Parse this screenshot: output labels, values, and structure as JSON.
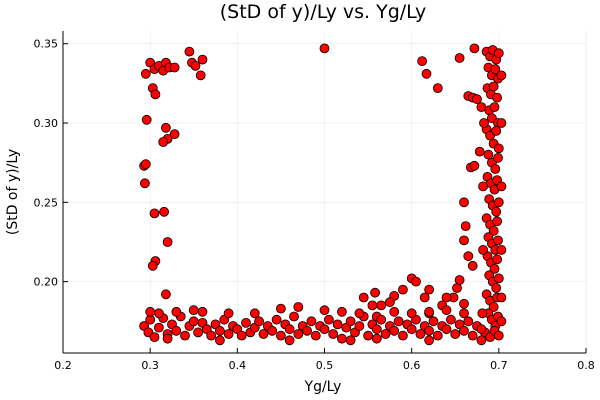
{
  "chart_data": {
    "type": "scatter",
    "title": "(StD of y)/Ly vs. Yg/Ly",
    "xlabel": "Yg/Ly",
    "ylabel": "(StD of y)/Ly",
    "xlim": [
      0.2,
      0.8
    ],
    "ylim": [
      0.155,
      0.358
    ],
    "xticks": [
      "0.2",
      "0.3",
      "0.4",
      "0.5",
      "0.6",
      "0.7",
      "0.8"
    ],
    "yticks": [
      "0.20",
      "0.25",
      "0.30",
      "0.35"
    ],
    "grid": true,
    "legend": "none",
    "marker_color": "#ff0000",
    "series": [
      {
        "points": [
          [
            0.295,
            0.331
          ],
          [
            0.3,
            0.338
          ],
          [
            0.305,
            0.334
          ],
          [
            0.31,
            0.336
          ],
          [
            0.315,
            0.333
          ],
          [
            0.318,
            0.338
          ],
          [
            0.322,
            0.335
          ],
          [
            0.328,
            0.335
          ],
          [
            0.345,
            0.345
          ],
          [
            0.348,
            0.338
          ],
          [
            0.352,
            0.336
          ],
          [
            0.358,
            0.33
          ],
          [
            0.36,
            0.34
          ],
          [
            0.303,
            0.322
          ],
          [
            0.306,
            0.318
          ],
          [
            0.296,
            0.302
          ],
          [
            0.318,
            0.297
          ],
          [
            0.32,
            0.29
          ],
          [
            0.315,
            0.288
          ],
          [
            0.328,
            0.293
          ],
          [
            0.293,
            0.273
          ],
          [
            0.295,
            0.274
          ],
          [
            0.294,
            0.262
          ],
          [
            0.305,
            0.243
          ],
          [
            0.316,
            0.244
          ],
          [
            0.32,
            0.225
          ],
          [
            0.306,
            0.213
          ],
          [
            0.303,
            0.21
          ],
          [
            0.318,
            0.192
          ],
          [
            0.5,
            0.347
          ],
          [
            0.612,
            0.339
          ],
          [
            0.617,
            0.331
          ],
          [
            0.63,
            0.322
          ],
          [
            0.655,
            0.341
          ],
          [
            0.672,
            0.347
          ],
          [
            0.665,
            0.317
          ],
          [
            0.67,
            0.316
          ],
          [
            0.675,
            0.315
          ],
          [
            0.68,
            0.31
          ],
          [
            0.66,
            0.25
          ],
          [
            0.662,
            0.235
          ],
          [
            0.668,
            0.272
          ],
          [
            0.672,
            0.273
          ],
          [
            0.678,
            0.282
          ],
          [
            0.66,
            0.226
          ],
          [
            0.665,
            0.216
          ],
          [
            0.67,
            0.21
          ],
          [
            0.652,
            0.196
          ],
          [
            0.655,
            0.201
          ],
          [
            0.648,
            0.19
          ],
          [
            0.66,
            0.186
          ],
          [
            0.64,
            0.19
          ],
          [
            0.635,
            0.185
          ],
          [
            0.6,
            0.202
          ],
          [
            0.605,
            0.2
          ],
          [
            0.59,
            0.195
          ],
          [
            0.58,
            0.191
          ],
          [
            0.575,
            0.187
          ],
          [
            0.565,
            0.185
          ],
          [
            0.558,
            0.193
          ],
          [
            0.555,
            0.185
          ],
          [
            0.545,
            0.19
          ],
          [
            0.56,
            0.178
          ],
          [
            0.615,
            0.19
          ],
          [
            0.62,
            0.18
          ],
          [
            0.62,
            0.195
          ],
          [
            0.686,
            0.345
          ],
          [
            0.69,
            0.342
          ],
          [
            0.693,
            0.346
          ],
          [
            0.697,
            0.34
          ],
          [
            0.7,
            0.344
          ],
          [
            0.688,
            0.335
          ],
          [
            0.692,
            0.33
          ],
          [
            0.696,
            0.334
          ],
          [
            0.699,
            0.328
          ],
          [
            0.687,
            0.322
          ],
          [
            0.691,
            0.318
          ],
          [
            0.694,
            0.323
          ],
          [
            0.698,
            0.316
          ],
          [
            0.689,
            0.308
          ],
          [
            0.692,
            0.303
          ],
          [
            0.695,
            0.31
          ],
          [
            0.699,
            0.3
          ],
          [
            0.686,
            0.296
          ],
          [
            0.69,
            0.292
          ],
          [
            0.694,
            0.287
          ],
          [
            0.697,
            0.295
          ],
          [
            0.7,
            0.284
          ],
          [
            0.688,
            0.28
          ],
          [
            0.692,
            0.275
          ],
          [
            0.696,
            0.271
          ],
          [
            0.699,
            0.278
          ],
          [
            0.687,
            0.266
          ],
          [
            0.691,
            0.262
          ],
          [
            0.695,
            0.258
          ],
          [
            0.698,
            0.264
          ],
          [
            0.689,
            0.252
          ],
          [
            0.693,
            0.248
          ],
          [
            0.697,
            0.244
          ],
          [
            0.7,
            0.25
          ],
          [
            0.686,
            0.24
          ],
          [
            0.69,
            0.236
          ],
          [
            0.694,
            0.232
          ],
          [
            0.698,
            0.238
          ],
          [
            0.688,
            0.228
          ],
          [
            0.692,
            0.224
          ],
          [
            0.696,
            0.22
          ],
          [
            0.699,
            0.226
          ],
          [
            0.687,
            0.216
          ],
          [
            0.691,
            0.212
          ],
          [
            0.695,
            0.208
          ],
          [
            0.698,
            0.214
          ],
          [
            0.689,
            0.204
          ],
          [
            0.693,
            0.2
          ],
          [
            0.697,
            0.196
          ],
          [
            0.7,
            0.202
          ],
          [
            0.686,
            0.192
          ],
          [
            0.69,
            0.188
          ],
          [
            0.694,
            0.184
          ],
          [
            0.698,
            0.19
          ],
          [
            0.688,
            0.18
          ],
          [
            0.692,
            0.176
          ],
          [
            0.696,
            0.172
          ],
          [
            0.699,
            0.178
          ],
          [
            0.684,
            0.168
          ],
          [
            0.69,
            0.165
          ],
          [
            0.695,
            0.169
          ],
          [
            0.7,
            0.166
          ],
          [
            0.703,
            0.175
          ],
          [
            0.703,
            0.19
          ],
          [
            0.703,
            0.22
          ],
          [
            0.703,
            0.26
          ],
          [
            0.703,
            0.3
          ],
          [
            0.703,
            0.33
          ],
          [
            0.682,
            0.22
          ],
          [
            0.682,
            0.26
          ],
          [
            0.683,
            0.3
          ],
          [
            0.681,
            0.18
          ],
          [
            0.293,
            0.172
          ],
          [
            0.298,
            0.168
          ],
          [
            0.3,
            0.176
          ],
          [
            0.305,
            0.165
          ],
          [
            0.31,
            0.171
          ],
          [
            0.315,
            0.177
          ],
          [
            0.32,
            0.167
          ],
          [
            0.325,
            0.173
          ],
          [
            0.33,
            0.169
          ],
          [
            0.335,
            0.178
          ],
          [
            0.34,
            0.166
          ],
          [
            0.345,
            0.172
          ],
          [
            0.35,
            0.175
          ],
          [
            0.355,
            0.168
          ],
          [
            0.36,
            0.174
          ],
          [
            0.365,
            0.17
          ],
          [
            0.37,
            0.166
          ],
          [
            0.375,
            0.173
          ],
          [
            0.38,
            0.169
          ],
          [
            0.385,
            0.176
          ],
          [
            0.39,
            0.167
          ],
          [
            0.395,
            0.172
          ],
          [
            0.4,
            0.17
          ],
          [
            0.405,
            0.166
          ],
          [
            0.41,
            0.174
          ],
          [
            0.415,
            0.168
          ],
          [
            0.42,
            0.171
          ],
          [
            0.425,
            0.175
          ],
          [
            0.43,
            0.167
          ],
          [
            0.435,
            0.172
          ],
          [
            0.44,
            0.169
          ],
          [
            0.445,
            0.176
          ],
          [
            0.45,
            0.166
          ],
          [
            0.455,
            0.173
          ],
          [
            0.46,
            0.17
          ],
          [
            0.465,
            0.178
          ],
          [
            0.47,
            0.167
          ],
          [
            0.475,
            0.172
          ],
          [
            0.48,
            0.169
          ],
          [
            0.485,
            0.175
          ],
          [
            0.49,
            0.166
          ],
          [
            0.495,
            0.172
          ],
          [
            0.5,
            0.17
          ],
          [
            0.505,
            0.176
          ],
          [
            0.51,
            0.167
          ],
          [
            0.515,
            0.173
          ],
          [
            0.52,
            0.164
          ],
          [
            0.525,
            0.171
          ],
          [
            0.53,
            0.175
          ],
          [
            0.535,
            0.168
          ],
          [
            0.54,
            0.172
          ],
          [
            0.545,
            0.178
          ],
          [
            0.55,
            0.166
          ],
          [
            0.555,
            0.173
          ],
          [
            0.56,
            0.17
          ],
          [
            0.565,
            0.176
          ],
          [
            0.57,
            0.167
          ],
          [
            0.575,
            0.172
          ],
          [
            0.58,
            0.169
          ],
          [
            0.585,
            0.175
          ],
          [
            0.59,
            0.166
          ],
          [
            0.595,
            0.173
          ],
          [
            0.6,
            0.17
          ],
          [
            0.605,
            0.176
          ],
          [
            0.61,
            0.167
          ],
          [
            0.615,
            0.172
          ],
          [
            0.62,
            0.169
          ],
          [
            0.625,
            0.175
          ],
          [
            0.63,
            0.166
          ],
          [
            0.635,
            0.172
          ],
          [
            0.64,
            0.17
          ],
          [
            0.645,
            0.176
          ],
          [
            0.65,
            0.167
          ],
          [
            0.655,
            0.173
          ],
          [
            0.66,
            0.169
          ],
          [
            0.665,
            0.175
          ],
          [
            0.67,
            0.166
          ],
          [
            0.675,
            0.172
          ],
          [
            0.68,
            0.17
          ],
          [
            0.3,
            0.181
          ],
          [
            0.31,
            0.18
          ],
          [
            0.33,
            0.181
          ],
          [
            0.35,
            0.182
          ],
          [
            0.36,
            0.181
          ],
          [
            0.39,
            0.18
          ],
          [
            0.42,
            0.18
          ],
          [
            0.45,
            0.183
          ],
          [
            0.47,
            0.184
          ],
          [
            0.5,
            0.182
          ],
          [
            0.52,
            0.181
          ],
          [
            0.54,
            0.18
          ],
          [
            0.56,
            0.164
          ],
          [
            0.58,
            0.181
          ],
          [
            0.6,
            0.18
          ],
          [
            0.62,
            0.181
          ],
          [
            0.64,
            0.182
          ],
          [
            0.66,
            0.18
          ],
          [
            0.53,
            0.163
          ],
          [
            0.46,
            0.163
          ],
          [
            0.38,
            0.163
          ],
          [
            0.32,
            0.164
          ],
          [
            0.62,
            0.163
          ],
          [
            0.68,
            0.163
          ]
        ]
      }
    ]
  }
}
